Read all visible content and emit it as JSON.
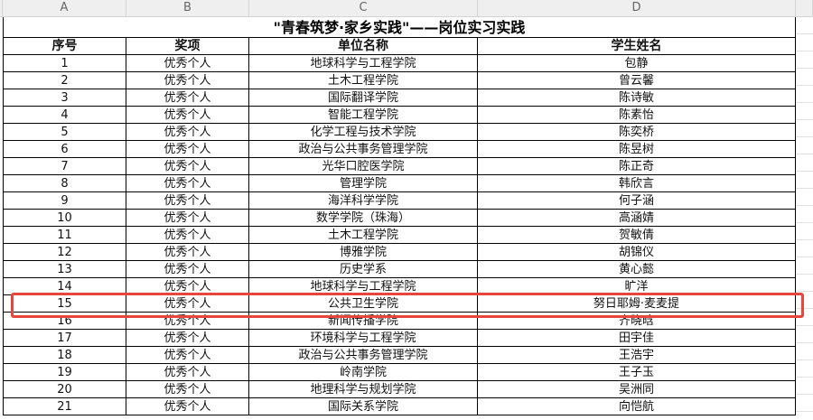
{
  "columns": [
    "A",
    "B",
    "C",
    "D"
  ],
  "title": "\"青春筑梦·家乡实践\"——岗位实习实践",
  "headers": [
    "序号",
    "奖项",
    "单位名称",
    "学生姓名"
  ],
  "rows": [
    [
      "1",
      "优秀个人",
      "地球科学与工程学院",
      "包静"
    ],
    [
      "2",
      "优秀个人",
      "土木工程学院",
      "曾云馨"
    ],
    [
      "3",
      "优秀个人",
      "国际翻译学院",
      "陈诗敏"
    ],
    [
      "4",
      "优秀个人",
      "智能工程学院",
      "陈素怡"
    ],
    [
      "5",
      "优秀个人",
      "化学工程与技术学院",
      "陈奕桥"
    ],
    [
      "6",
      "优秀个人",
      "政治与公共事务管理学院",
      "陈昱树"
    ],
    [
      "7",
      "优秀个人",
      "光华口腔医学院",
      "陈正奇"
    ],
    [
      "8",
      "优秀个人",
      "管理学院",
      "韩欣言"
    ],
    [
      "9",
      "优秀个人",
      "海洋科学学院",
      "何子涵"
    ],
    [
      "10",
      "优秀个人",
      "数学学院（珠海）",
      "高涵婧"
    ],
    [
      "11",
      "优秀个人",
      "土木工程学院",
      "贺敏倩"
    ],
    [
      "12",
      "优秀个人",
      "博雅学院",
      "胡锦仪"
    ],
    [
      "13",
      "优秀个人",
      "历史学系",
      "黄心懿"
    ],
    [
      "14",
      "优秀个人",
      "地球科学与工程学院",
      "旷洋"
    ],
    [
      "15",
      "优秀个人",
      "公共卫生学院",
      "努日耶姆·麦麦提"
    ],
    [
      "16",
      "优秀个人",
      "新闻传播学院",
      "齐晓晗"
    ],
    [
      "17",
      "优秀个人",
      "环境科学与工程学院",
      "田宇佳"
    ],
    [
      "18",
      "优秀个人",
      "政治与公共事务管理学院",
      "王浩宇"
    ],
    [
      "19",
      "优秀个人",
      "岭南学院",
      "王子玉"
    ],
    [
      "20",
      "优秀个人",
      "地理科学与规划学院",
      "吴洲同"
    ],
    [
      "21",
      "优秀个人",
      "国际关系学院",
      "向恺航"
    ]
  ],
  "highlighted_row": "15",
  "colors": {
    "highlight": "#e8453c",
    "header_bg": "#efefef"
  }
}
